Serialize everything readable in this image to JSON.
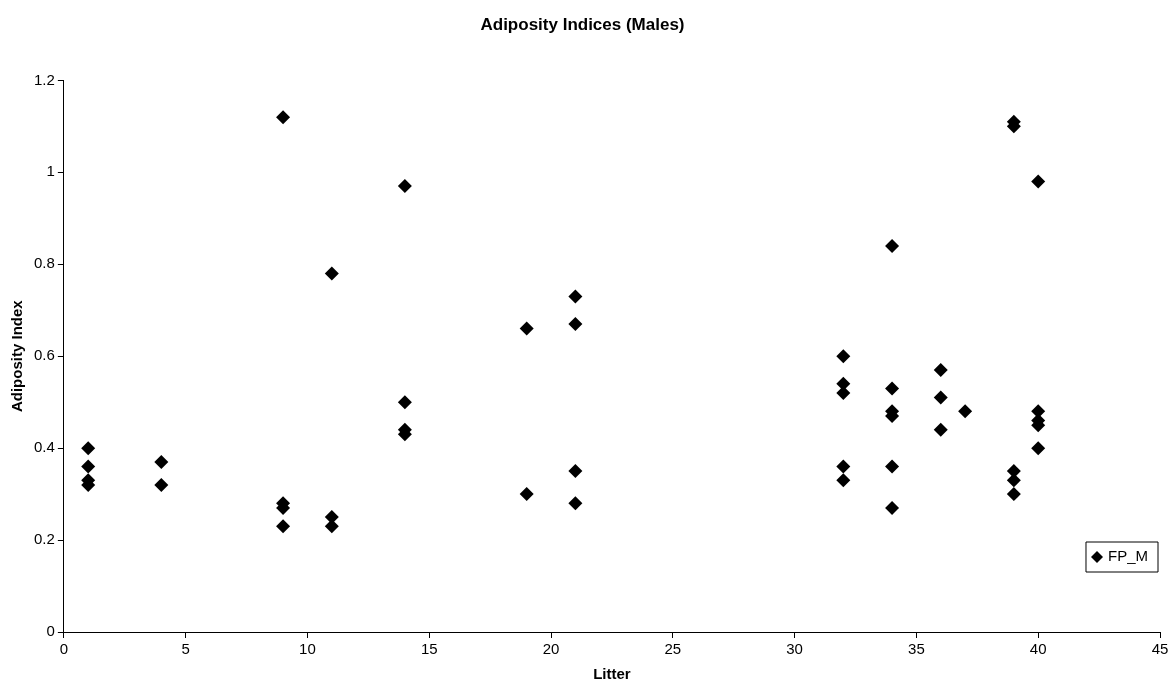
{
  "chart_data": {
    "type": "scatter",
    "title": "Adiposity Indices (Males)",
    "xlabel": "Litter",
    "ylabel": "Adiposity Index",
    "marker": "diamond",
    "legend": "bottom right",
    "grid": false,
    "xlim": [
      0,
      45
    ],
    "xticks": [
      0,
      5,
      10,
      15,
      20,
      25,
      30,
      35,
      40,
      45
    ],
    "ylim": [
      0,
      1.2
    ],
    "yticks": [
      0,
      0.2,
      0.4,
      0.6,
      0.8,
      1,
      1.2
    ],
    "series": [
      {
        "name": "FP_M",
        "color": "#000000",
        "x": [
          1,
          1,
          1,
          1,
          4,
          4,
          9,
          9,
          9,
          9,
          11,
          11,
          11,
          14,
          14,
          14,
          14,
          19,
          19,
          21,
          21,
          21,
          21,
          32,
          32,
          32,
          32,
          32,
          34,
          34,
          34,
          34,
          34,
          34,
          36,
          36,
          36,
          37,
          39,
          39,
          39,
          39,
          39,
          40,
          40,
          40,
          40,
          40
        ],
        "values": [
          0.4,
          0.36,
          0.33,
          0.32,
          0.37,
          0.32,
          1.12,
          0.28,
          0.27,
          0.23,
          0.78,
          0.25,
          0.23,
          0.97,
          0.5,
          0.44,
          0.43,
          0.66,
          0.3,
          0.73,
          0.67,
          0.35,
          0.28,
          0.6,
          0.54,
          0.52,
          0.36,
          0.33,
          0.84,
          0.53,
          0.48,
          0.47,
          0.36,
          0.27,
          0.57,
          0.51,
          0.44,
          0.48,
          1.11,
          1.1,
          0.35,
          0.33,
          0.3,
          0.98,
          0.48,
          0.46,
          0.45,
          0.4
        ]
      }
    ]
  }
}
